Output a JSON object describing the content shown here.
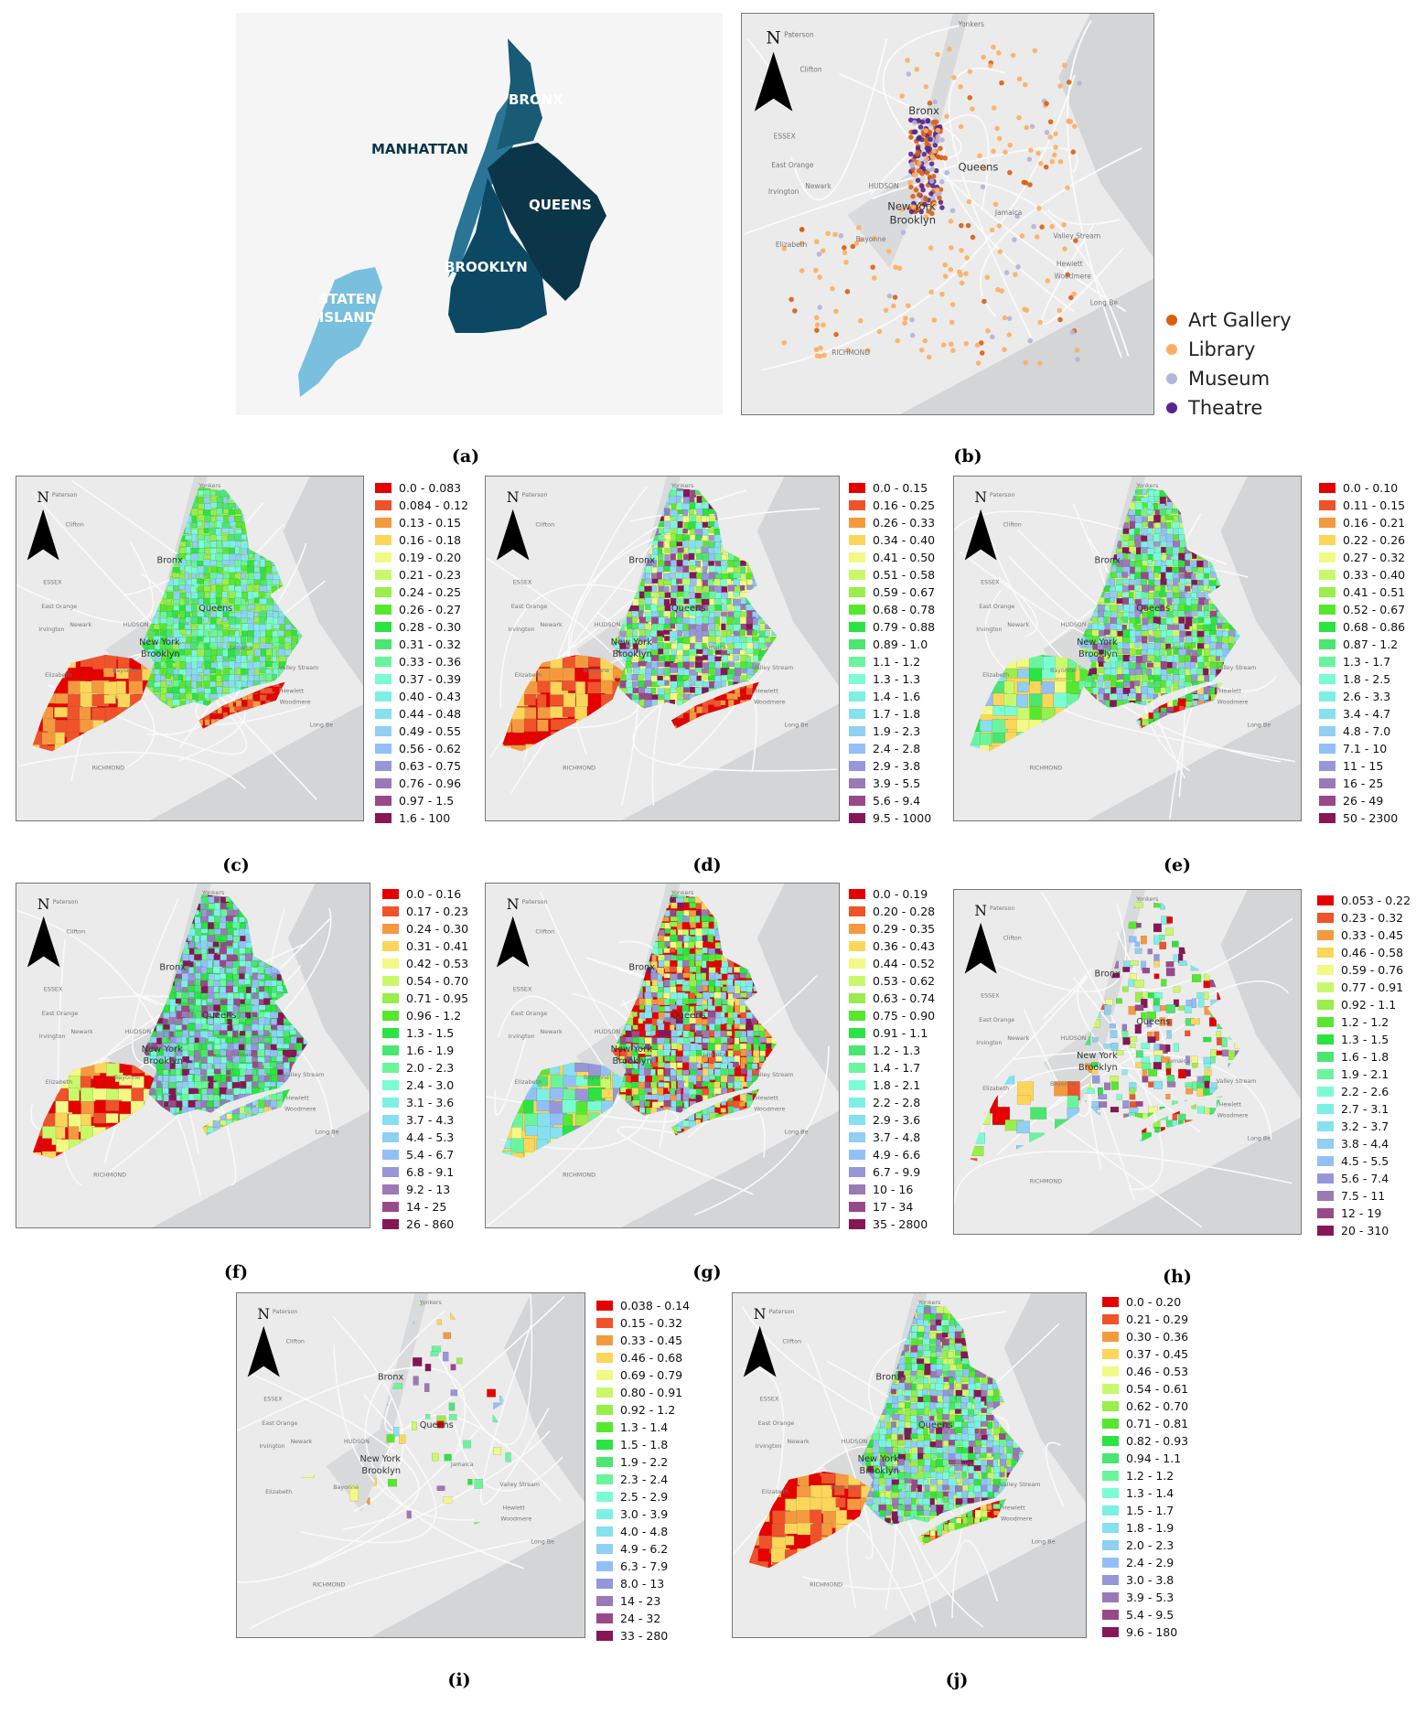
{
  "captions": [
    "(a)",
    "(b)",
    "(c)",
    "(d)",
    "(e)",
    "(f)",
    "(g)",
    "(h)",
    "(i)",
    "(j)"
  ],
  "panel_a": {
    "boroughs": [
      {
        "name": "MANHATTAN",
        "color": "#2a7596"
      },
      {
        "name": "BRONX",
        "color": "#195a75"
      },
      {
        "name": "QUEENS",
        "color": "#0b3548"
      },
      {
        "name": "BROOKLYN",
        "color": "#0c4862"
      },
      {
        "name": "STATEN ISLAND",
        "color": "#79bfde"
      }
    ]
  },
  "panel_b": {
    "legend": [
      {
        "label": "Art Gallery",
        "color": "#d95f0e"
      },
      {
        "label": "Library",
        "color": "#fdae61"
      },
      {
        "label": "Museum",
        "color": "#b4b3da"
      },
      {
        "label": "Theatre",
        "color": "#54278f"
      }
    ]
  },
  "north_label": "N",
  "place_labels": [
    "Paterson",
    "Clifton",
    "ESSEX",
    "East Orange",
    "Newark",
    "Irvington",
    "HUDSON",
    "Elizabeth",
    "Bayonne",
    "Bronx",
    "Queens",
    "New York",
    "Brooklyn",
    "Jamaica",
    "Valley Stream",
    "Hewlett",
    "Woodmere",
    "Long Be",
    "Yonkers",
    "RICHMOND"
  ],
  "class_colors": [
    "#e60000",
    "#f0522a",
    "#f5993e",
    "#fbd65a",
    "#f2f985",
    "#c9f96a",
    "#98ee4a",
    "#55e82f",
    "#2be342",
    "#4be572",
    "#6af59d",
    "#7afdd3",
    "#7df0e6",
    "#85e1ef",
    "#8fcff2",
    "#93bff8",
    "#9697d8",
    "#9b79b5",
    "#99498a",
    "#861656"
  ],
  "legends": {
    "c": [
      "0.0 - 0.083",
      "0.084 - 0.12",
      "0.13 - 0.15",
      "0.16 - 0.18",
      "0.19 - 0.20",
      "0.21 - 0.23",
      "0.24 - 0.25",
      "0.26 - 0.27",
      "0.28 - 0.30",
      "0.31 - 0.32",
      "0.33 - 0.36",
      "0.37 - 0.39",
      "0.40 - 0.43",
      "0.44 - 0.48",
      "0.49 - 0.55",
      "0.56 - 0.62",
      "0.63 - 0.75",
      "0.76 - 0.96",
      "0.97 - 1.5",
      "1.6 - 100"
    ],
    "d": [
      "0.0 - 0.15",
      "0.16 - 0.25",
      "0.26 - 0.33",
      "0.34 - 0.40",
      "0.41 - 0.50",
      "0.51 - 0.58",
      "0.59 - 0.67",
      "0.68 - 0.78",
      "0.79 - 0.88",
      "0.89 - 1.0",
      "1.1 - 1.2",
      "1.3 - 1.3",
      "1.4 - 1.6",
      "1.7 - 1.8",
      "1.9 - 2.3",
      "2.4 - 2.8",
      "2.9 - 3.8",
      "3.9 - 5.5",
      "5.6 - 9.4",
      "9.5 - 1000"
    ],
    "e": [
      "0.0 - 0.10",
      "0.11 - 0.15",
      "0.16 - 0.21",
      "0.22 - 0.26",
      "0.27 - 0.32",
      "0.33 - 0.40",
      "0.41 - 0.51",
      "0.52 - 0.67",
      "0.68 - 0.86",
      "0.87 - 1.2",
      "1.3 - 1.7",
      "1.8 - 2.5",
      "2.6 - 3.3",
      "3.4 - 4.7",
      "4.8 - 7.0",
      "7.1 - 10",
      "11 - 15",
      "16 - 25",
      "26 - 49",
      "50 - 2300"
    ],
    "f": [
      "0.0 - 0.16",
      "0.17 - 0.23",
      "0.24 - 0.30",
      "0.31 - 0.41",
      "0.42 - 0.53",
      "0.54 - 0.70",
      "0.71 - 0.95",
      "0.96 - 1.2",
      "1.3 - 1.5",
      "1.6 - 1.9",
      "2.0 - 2.3",
      "2.4 - 3.0",
      "3.1 - 3.6",
      "3.7 - 4.3",
      "4.4 - 5.3",
      "5.4 - 6.7",
      "6.8 - 9.1",
      "9.2 - 13",
      "14 - 25",
      "26 - 860"
    ],
    "g": [
      "0.0 - 0.19",
      "0.20 - 0.28",
      "0.29 - 0.35",
      "0.36 - 0.43",
      "0.44 - 0.52",
      "0.53 - 0.62",
      "0.63 - 0.74",
      "0.75 - 0.90",
      "0.91 - 1.1",
      "1.2 - 1.3",
      "1.4 - 1.7",
      "1.8 - 2.1",
      "2.2 - 2.8",
      "2.9 - 3.6",
      "3.7 - 4.8",
      "4.9 - 6.6",
      "6.7 - 9.9",
      "10 - 16",
      "17 - 34",
      "35 - 2800"
    ],
    "h": [
      "0.053 - 0.22",
      "0.23 - 0.32",
      "0.33 - 0.45",
      "0.46 - 0.58",
      "0.59 - 0.76",
      "0.77 - 0.91",
      "0.92 - 1.1",
      "1.2 - 1.2",
      "1.3 - 1.5",
      "1.6 - 1.8",
      "1.9 - 2.1",
      "2.2 - 2.6",
      "2.7 - 3.1",
      "3.2 - 3.7",
      "3.8 - 4.4",
      "4.5 - 5.5",
      "5.6 - 7.4",
      "7.5 - 11",
      "12 - 19",
      "20 - 310"
    ],
    "i": [
      "0.038 - 0.14",
      "0.15 - 0.32",
      "0.33 - 0.45",
      "0.46 - 0.68",
      "0.69 - 0.79",
      "0.80 - 0.91",
      "0.92 - 1.2",
      "1.3 - 1.4",
      "1.5 - 1.8",
      "1.9 - 2.2",
      "2.3 - 2.4",
      "2.5 - 2.9",
      "3.0 - 3.9",
      "4.0 - 4.8",
      "4.9 - 6.2",
      "6.3 - 7.9",
      "8.0 - 13",
      "14 - 23",
      "24 - 32",
      "33 - 280"
    ],
    "j": [
      "0.0 - 0.20",
      "0.21 - 0.29",
      "0.30 - 0.36",
      "0.37 - 0.45",
      "0.46 - 0.53",
      "0.54 - 0.61",
      "0.62 - 0.70",
      "0.71 - 0.81",
      "0.82 - 0.93",
      "0.94 - 1.1",
      "1.2 - 1.2",
      "1.3 - 1.4",
      "1.5 - 1.7",
      "1.8 - 1.9",
      "2.0 - 2.3",
      "2.4 - 2.9",
      "3.0 - 3.8",
      "3.9 - 5.3",
      "5.4 - 9.5",
      "9.6 - 180"
    ]
  }
}
